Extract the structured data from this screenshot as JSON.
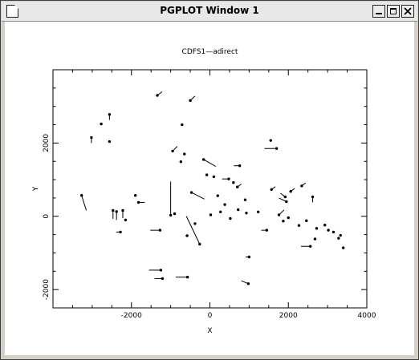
{
  "window": {
    "title": "PGPLOT Window 1",
    "system_icon": "document-icon",
    "controls": [
      "minimize-icon",
      "maximize-icon",
      "close-icon"
    ]
  },
  "chart_data": {
    "type": "scatter",
    "title": "CDFS1—adirect",
    "xlabel": "X",
    "ylabel": "Y",
    "xlim": [
      -4000,
      4000
    ],
    "ylim": [
      -2500,
      4000
    ],
    "xticks": [
      -2000,
      0,
      2000,
      4000
    ],
    "yticks": [
      -2000,
      0,
      2000
    ],
    "grid": false,
    "marker": "dot-with-vector",
    "color": "#000000",
    "points": [
      {
        "x": -3270,
        "y": 570,
        "dx": 120,
        "dy": -410
      },
      {
        "x": -3020,
        "y": 2150,
        "dx": 0,
        "dy": -150
      },
      {
        "x": -2770,
        "y": 2520,
        "dx": 0,
        "dy": 0
      },
      {
        "x": -2560,
        "y": 2780,
        "dx": 0,
        "dy": -150
      },
      {
        "x": -2560,
        "y": 2040,
        "dx": 0,
        "dy": 0
      },
      {
        "x": -2470,
        "y": 160,
        "dx": 0,
        "dy": -230
      },
      {
        "x": -2380,
        "y": 130,
        "dx": 0,
        "dy": -230
      },
      {
        "x": -2220,
        "y": 160,
        "dx": 0,
        "dy": -210
      },
      {
        "x": -2150,
        "y": -100,
        "dx": 0,
        "dy": 0
      },
      {
        "x": -2280,
        "y": -430,
        "dx": -110,
        "dy": 0
      },
      {
        "x": -1900,
        "y": 570,
        "dx": 0,
        "dy": 0
      },
      {
        "x": -1820,
        "y": 380,
        "dx": 160,
        "dy": 0
      },
      {
        "x": -1340,
        "y": 3300,
        "dx": 120,
        "dy": 100
      },
      {
        "x": -1270,
        "y": -380,
        "dx": -250,
        "dy": 0
      },
      {
        "x": -1000,
        "y": 30,
        "dx": 0,
        "dy": 920
      },
      {
        "x": -950,
        "y": 1780,
        "dx": 120,
        "dy": 130
      },
      {
        "x": -900,
        "y": 70,
        "dx": 0,
        "dy": 0
      },
      {
        "x": -740,
        "y": 1490,
        "dx": 0,
        "dy": 0
      },
      {
        "x": -710,
        "y": 2500,
        "dx": 0,
        "dy": 0
      },
      {
        "x": -650,
        "y": 1700,
        "dx": 0,
        "dy": 0
      },
      {
        "x": -580,
        "y": -530,
        "dx": -40,
        "dy": 0
      },
      {
        "x": -500,
        "y": 3160,
        "dx": 120,
        "dy": 120
      },
      {
        "x": -470,
        "y": 650,
        "dx": 330,
        "dy": -180
      },
      {
        "x": -380,
        "y": -200,
        "dx": 0,
        "dy": 0
      },
      {
        "x": -260,
        "y": -760,
        "dx": -340,
        "dy": 760
      },
      {
        "x": -160,
        "y": 1550,
        "dx": 310,
        "dy": -190
      },
      {
        "x": -80,
        "y": 1130,
        "dx": 0,
        "dy": 0
      },
      {
        "x": 20,
        "y": 40,
        "dx": 0,
        "dy": 0
      },
      {
        "x": 100,
        "y": 1080,
        "dx": 0,
        "dy": 0
      },
      {
        "x": 200,
        "y": 560,
        "dx": 0,
        "dy": 0
      },
      {
        "x": 270,
        "y": 120,
        "dx": 0,
        "dy": 0
      },
      {
        "x": 380,
        "y": 320,
        "dx": 0,
        "dy": 0
      },
      {
        "x": 480,
        "y": 1020,
        "dx": -170,
        "dy": 0
      },
      {
        "x": 520,
        "y": -60,
        "dx": 0,
        "dy": 0
      },
      {
        "x": 600,
        "y": 920,
        "dx": 0,
        "dy": 0
      },
      {
        "x": 700,
        "y": 800,
        "dx": 100,
        "dy": 80
      },
      {
        "x": 720,
        "y": 180,
        "dx": 0,
        "dy": 0
      },
      {
        "x": 760,
        "y": 1380,
        "dx": -150,
        "dy": 0
      },
      {
        "x": 900,
        "y": 450,
        "dx": 0,
        "dy": 0
      },
      {
        "x": 930,
        "y": 90,
        "dx": 0,
        "dy": 0
      },
      {
        "x": 1000,
        "y": -1110,
        "dx": -90,
        "dy": 0
      },
      {
        "x": 980,
        "y": -1840,
        "dx": -180,
        "dy": 80
      },
      {
        "x": 1230,
        "y": 120,
        "dx": 0,
        "dy": 0
      },
      {
        "x": 1450,
        "y": -380,
        "dx": -140,
        "dy": 0
      },
      {
        "x": 1550,
        "y": 2070,
        "dx": 0,
        "dy": 0
      },
      {
        "x": 1570,
        "y": 730,
        "dx": 100,
        "dy": 80
      },
      {
        "x": 1700,
        "y": 1850,
        "dx": -310,
        "dy": 0
      },
      {
        "x": 1760,
        "y": 40,
        "dx": 130,
        "dy": 130
      },
      {
        "x": 1870,
        "y": -130,
        "dx": 0,
        "dy": 0
      },
      {
        "x": 1920,
        "y": 530,
        "dx": -120,
        "dy": 100
      },
      {
        "x": 1950,
        "y": 400,
        "dx": -190,
        "dy": 100
      },
      {
        "x": 2000,
        "y": -40,
        "dx": 0,
        "dy": 0
      },
      {
        "x": 2060,
        "y": 680,
        "dx": 100,
        "dy": 80
      },
      {
        "x": 2270,
        "y": -250,
        "dx": 0,
        "dy": 0
      },
      {
        "x": 2340,
        "y": 830,
        "dx": 100,
        "dy": 80
      },
      {
        "x": 2460,
        "y": -120,
        "dx": 0,
        "dy": 0
      },
      {
        "x": 2560,
        "y": -820,
        "dx": -240,
        "dy": 0
      },
      {
        "x": 2620,
        "y": 530,
        "dx": 0,
        "dy": -150
      },
      {
        "x": 2680,
        "y": -620,
        "dx": 0,
        "dy": 0
      },
      {
        "x": 2720,
        "y": -330,
        "dx": 0,
        "dy": 0
      },
      {
        "x": 2930,
        "y": -240,
        "dx": 0,
        "dy": 0
      },
      {
        "x": 3020,
        "y": -380,
        "dx": 0,
        "dy": 0
      },
      {
        "x": 3150,
        "y": -430,
        "dx": 0,
        "dy": 0
      },
      {
        "x": 3280,
        "y": -600,
        "dx": 0,
        "dy": 0
      },
      {
        "x": 3330,
        "y": -520,
        "dx": 0,
        "dy": 0
      },
      {
        "x": 3400,
        "y": -860,
        "dx": 0,
        "dy": 0
      },
      {
        "x": -1250,
        "y": -1470,
        "dx": -300,
        "dy": 0
      },
      {
        "x": -1210,
        "y": -1700,
        "dx": -200,
        "dy": 0
      },
      {
        "x": -570,
        "y": -1660,
        "dx": -300,
        "dy": 0
      }
    ]
  }
}
